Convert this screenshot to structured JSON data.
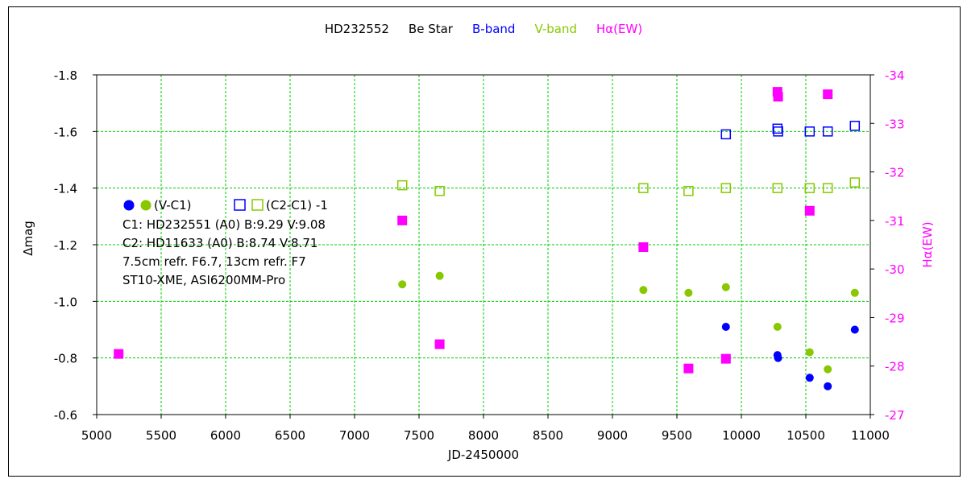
{
  "chart_data": {
    "type": "scatter",
    "title_parts": [
      {
        "text": "HD232552",
        "color": "#000000"
      },
      {
        "text": "Be Star",
        "color": "#000000"
      },
      {
        "text": "B-band",
        "color": "#0000ff"
      },
      {
        "text": "V-band",
        "color": "#88c800"
      },
      {
        "text": "Hα(EW)",
        "color": "#ff00ff"
      }
    ],
    "xlabel": "JD-2450000",
    "ylabel": "Δmag",
    "y2label": "Hα(EW)",
    "xlim": [
      5000,
      11000
    ],
    "ylim": [
      -0.6,
      -1.8
    ],
    "y2lim": [
      -27,
      -34
    ],
    "xticks": [
      "5000",
      "5500",
      "6000",
      "6500",
      "7000",
      "7500",
      "8000",
      "8500",
      "9000",
      "9500",
      "10000",
      "10500",
      "11000"
    ],
    "yticks": [
      "-1.8",
      "-1.6",
      "-1.4",
      "-1.2",
      "-1.0",
      "-0.8",
      "-0.6"
    ],
    "y2ticks": [
      "-34",
      "-33",
      "-32",
      "-31",
      "-30",
      "-29",
      "-28",
      "-27"
    ],
    "grid": true,
    "colors": {
      "b_band": "#0000ff",
      "v_band": "#88c800",
      "halpha": "#ff00ff",
      "grid": "#00cc00"
    },
    "annotations": {
      "legend_vc1": "(V-C1)",
      "legend_c2c1": "(C2-C1) -1",
      "line1": "C1: HD232551 (A0)  B:9.29  V:9.08",
      "line2": "C2: HD11633 (A0)  B:8.74  V:8.71",
      "line3": "7.5cm refr. F6.7,  13cm refr. F7",
      "line4": "ST10-XME,  ASI6200MM-Pro"
    },
    "series": [
      {
        "name": "(V-C1)",
        "band": "B",
        "marker": "filled-circle",
        "x": [
          9880,
          10280,
          10285,
          10530,
          10670,
          10880
        ],
        "y": [
          -0.91,
          -0.81,
          -0.8,
          -0.73,
          -0.7,
          -0.9
        ]
      },
      {
        "name": "(V-C1)",
        "band": "V",
        "marker": "filled-circle",
        "x": [
          7370,
          7660,
          9240,
          9590,
          9880,
          10280,
          10530,
          10670,
          10880
        ],
        "y": [
          -1.06,
          -1.09,
          -1.04,
          -1.03,
          -1.05,
          -0.91,
          -0.82,
          -0.76,
          -1.03
        ]
      },
      {
        "name": "(C2-C1) -1",
        "band": "B",
        "marker": "open-square",
        "x": [
          9880,
          10280,
          10285,
          10530,
          10670,
          10880
        ],
        "y": [
          -1.59,
          -1.61,
          -1.6,
          -1.6,
          -1.6,
          -1.62
        ]
      },
      {
        "name": "(C2-C1) -1",
        "band": "V",
        "marker": "open-square",
        "x": [
          7370,
          7660,
          9240,
          9590,
          9880,
          10280,
          10530,
          10670,
          10880
        ],
        "y": [
          -1.41,
          -1.39,
          -1.4,
          -1.39,
          -1.4,
          -1.4,
          -1.4,
          -1.4,
          -1.42
        ]
      },
      {
        "band": "Halpha",
        "marker": "filled-square",
        "axis": "right",
        "x": [
          5170,
          7370,
          7660,
          9240,
          9590,
          9880,
          10280,
          10285,
          10530,
          10670
        ],
        "y": [
          -28.25,
          -31.0,
          -28.45,
          -30.45,
          -27.95,
          -28.15,
          -33.65,
          -33.55,
          -31.2,
          -33.6
        ]
      }
    ]
  }
}
